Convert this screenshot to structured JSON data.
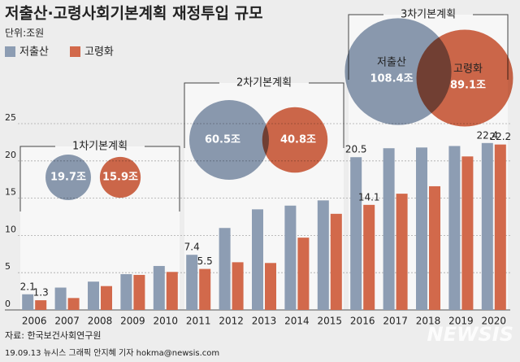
{
  "chart_data": {
    "type": "bar",
    "title": "저출산·고령사회기본계획 재정투입 규모",
    "unit": "단위:조원",
    "source": "자료: 한국보건사회연구원",
    "credit": "19.09.13 뉴시스 그래픽 안지혜 기자 hokma@newsis.com",
    "watermark": "NEWSIS",
    "categories": [
      "2006",
      "2007",
      "2008",
      "2009",
      "2010",
      "2011",
      "2012",
      "2013",
      "2014",
      "2015",
      "2016",
      "2017",
      "2018",
      "2019",
      "2020"
    ],
    "series": [
      {
        "name": "저출산",
        "color": "#8d9db3",
        "values": [
          2.1,
          3.0,
          3.8,
          4.8,
          5.9,
          7.4,
          11.0,
          13.5,
          14.0,
          14.7,
          20.5,
          21.7,
          21.8,
          22.0,
          22.4
        ],
        "value_labels": [
          "2.1",
          null,
          null,
          null,
          null,
          "7.4",
          null,
          null,
          null,
          null,
          "20.5",
          null,
          null,
          null,
          "22.4"
        ]
      },
      {
        "name": "고령화",
        "color": "#d2694b",
        "values": [
          1.3,
          1.6,
          3.2,
          4.7,
          5.1,
          5.5,
          6.4,
          6.3,
          9.7,
          12.9,
          14.1,
          15.6,
          16.6,
          20.6,
          22.2
        ],
        "value_labels": [
          "1.3",
          null,
          null,
          null,
          null,
          "5.5",
          null,
          null,
          null,
          null,
          "14.1",
          null,
          null,
          null,
          "22.2"
        ]
      }
    ],
    "ylim": [
      0,
      25
    ],
    "yticks": [
      0,
      5,
      10,
      15,
      20,
      25
    ],
    "grid": true,
    "plans": [
      {
        "name": "1차기본계획",
        "values": [
          19.7,
          15.9
        ],
        "value_labels": [
          "19.7조",
          "15.9조"
        ]
      },
      {
        "name": "2차기본계획",
        "values": [
          60.5,
          40.8
        ],
        "value_labels": [
          "60.5조",
          "40.8조"
        ]
      },
      {
        "name": "3차기본계획",
        "values": [
          108.4,
          89.1
        ],
        "value_labels": [
          "108.4조",
          "89.1조"
        ]
      }
    ]
  }
}
